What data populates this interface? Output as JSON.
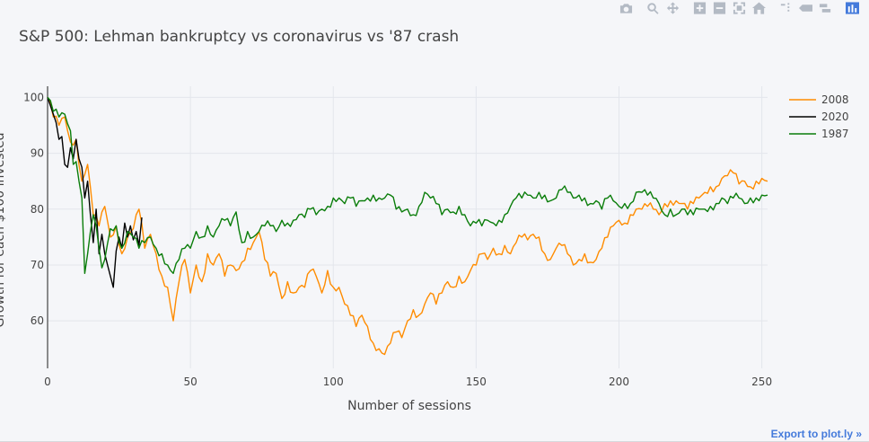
{
  "modebar": {
    "buttons": [
      {
        "name": "camera-icon"
      },
      {
        "name": "zoom-icon"
      },
      {
        "name": "pan-icon"
      },
      {
        "name": "zoom-in-icon"
      },
      {
        "name": "zoom-out-icon"
      },
      {
        "name": "autoscale-icon"
      },
      {
        "name": "home-icon"
      },
      {
        "name": "spike-lines-icon"
      },
      {
        "name": "hover-closest-icon"
      },
      {
        "name": "hover-compare-icon"
      },
      {
        "name": "plotly-logo-icon"
      }
    ]
  },
  "export_label": "Export to plot.ly »",
  "colors": {
    "s2008": "#ff8c00",
    "s2020": "#000000",
    "s1987": "#0a7d0a",
    "grid": "#e3e6ec",
    "axis": "#444444"
  },
  "chart_data": {
    "type": "line",
    "title": "S&P 500: Lehman bankruptcy vs coronavirus vs '87 crash",
    "xlabel": "Number of sessions",
    "ylabel": "Growth for each $100 invested",
    "xlim": [
      0,
      252
    ],
    "ylim": [
      51.5,
      102
    ],
    "x_ticks": [
      0,
      50,
      100,
      150,
      200,
      250
    ],
    "y_ticks": [
      60,
      70,
      80,
      90,
      100
    ],
    "legend_position": "top-right",
    "series": [
      {
        "name": "2008",
        "color": "#ff8c00",
        "keypoints": [
          [
            0,
            100
          ],
          [
            2,
            96.5
          ],
          [
            4,
            95
          ],
          [
            6,
            96.5
          ],
          [
            8,
            92
          ],
          [
            10,
            92.5
          ],
          [
            12,
            85
          ],
          [
            14,
            88
          ],
          [
            16,
            79
          ],
          [
            18,
            77
          ],
          [
            20,
            80.5
          ],
          [
            22,
            75
          ],
          [
            24,
            77
          ],
          [
            26,
            72
          ],
          [
            28,
            75
          ],
          [
            30,
            76.5
          ],
          [
            32,
            80
          ],
          [
            34,
            73
          ],
          [
            36,
            75.5
          ],
          [
            38,
            72
          ],
          [
            40,
            68
          ],
          [
            42,
            66
          ],
          [
            44,
            60
          ],
          [
            46,
            67
          ],
          [
            48,
            71
          ],
          [
            50,
            65
          ],
          [
            52,
            70
          ],
          [
            54,
            67
          ],
          [
            56,
            72
          ],
          [
            58,
            70
          ],
          [
            60,
            72
          ],
          [
            62,
            68
          ],
          [
            64,
            70
          ],
          [
            66,
            69
          ],
          [
            68,
            70.5
          ],
          [
            70,
            73
          ],
          [
            72,
            74
          ],
          [
            74,
            76
          ],
          [
            76,
            71
          ],
          [
            78,
            68
          ],
          [
            80,
            68.5
          ],
          [
            82,
            64
          ],
          [
            84,
            67
          ],
          [
            86,
            65
          ],
          [
            88,
            66
          ],
          [
            90,
            66
          ],
          [
            92,
            69
          ],
          [
            94,
            68
          ],
          [
            96,
            65
          ],
          [
            98,
            69
          ],
          [
            100,
            66
          ],
          [
            102,
            66
          ],
          [
            104,
            63
          ],
          [
            106,
            61
          ],
          [
            108,
            59
          ],
          [
            110,
            61
          ],
          [
            112,
            59
          ],
          [
            114,
            56
          ],
          [
            116,
            55
          ],
          [
            118,
            54
          ],
          [
            120,
            56
          ],
          [
            122,
            58
          ],
          [
            124,
            57
          ],
          [
            126,
            60
          ],
          [
            128,
            62
          ],
          [
            130,
            61
          ],
          [
            132,
            63
          ],
          [
            134,
            65
          ],
          [
            136,
            63
          ],
          [
            138,
            65
          ],
          [
            140,
            67
          ],
          [
            142,
            66
          ],
          [
            144,
            68
          ],
          [
            146,
            67
          ],
          [
            148,
            69
          ],
          [
            150,
            70
          ],
          [
            152,
            72
          ],
          [
            154,
            71
          ],
          [
            156,
            73
          ],
          [
            158,
            72
          ],
          [
            160,
            73.5
          ],
          [
            162,
            72
          ],
          [
            164,
            74
          ],
          [
            166,
            75
          ],
          [
            168,
            74.5
          ],
          [
            170,
            75.5
          ],
          [
            172,
            75
          ],
          [
            174,
            72
          ],
          [
            176,
            71
          ],
          [
            178,
            73
          ],
          [
            180,
            73.5
          ],
          [
            182,
            72
          ],
          [
            184,
            70
          ],
          [
            186,
            71
          ],
          [
            188,
            72
          ],
          [
            190,
            70.5
          ],
          [
            192,
            71
          ],
          [
            194,
            73
          ],
          [
            196,
            75
          ],
          [
            198,
            77
          ],
          [
            200,
            78
          ],
          [
            202,
            77.5
          ],
          [
            204,
            79
          ],
          [
            206,
            80
          ],
          [
            208,
            80
          ],
          [
            210,
            80.5
          ],
          [
            212,
            80
          ],
          [
            214,
            79
          ],
          [
            216,
            81
          ],
          [
            218,
            81.5
          ],
          [
            220,
            81.5
          ],
          [
            222,
            81
          ],
          [
            224,
            80
          ],
          [
            226,
            81
          ],
          [
            228,
            82
          ],
          [
            230,
            83
          ],
          [
            232,
            84
          ],
          [
            234,
            84
          ],
          [
            236,
            85.5
          ],
          [
            238,
            86
          ],
          [
            240,
            86.5
          ],
          [
            242,
            84.5
          ],
          [
            244,
            85
          ],
          [
            246,
            84
          ],
          [
            248,
            85
          ],
          [
            250,
            85.5
          ],
          [
            252,
            85
          ]
        ]
      },
      {
        "name": "2020",
        "color": "#000000",
        "keypoints": [
          [
            0,
            100
          ],
          [
            1,
            98.5
          ],
          [
            2,
            97
          ],
          [
            3,
            95.5
          ],
          [
            4,
            92.5
          ],
          [
            5,
            93
          ],
          [
            6,
            88
          ],
          [
            7,
            87.5
          ],
          [
            8,
            91
          ],
          [
            9,
            89
          ],
          [
            10,
            92.5
          ],
          [
            11,
            89
          ],
          [
            12,
            87.5
          ],
          [
            13,
            82
          ],
          [
            14,
            85
          ],
          [
            15,
            79
          ],
          [
            16,
            74
          ],
          [
            17,
            80
          ],
          [
            18,
            72
          ],
          [
            19,
            75.5
          ],
          [
            20,
            72
          ],
          [
            21,
            70
          ],
          [
            22,
            68
          ],
          [
            23,
            66
          ],
          [
            24,
            72.5
          ],
          [
            25,
            75
          ],
          [
            26,
            73
          ],
          [
            27,
            77.5
          ],
          [
            28,
            75
          ],
          [
            29,
            77
          ],
          [
            30,
            74.5
          ],
          [
            31,
            76
          ],
          [
            32,
            73.5
          ],
          [
            33,
            78.5
          ]
        ]
      },
      {
        "name": "1987",
        "color": "#0a7d0a",
        "keypoints": [
          [
            0,
            100
          ],
          [
            2,
            97.5
          ],
          [
            4,
            96.5
          ],
          [
            6,
            97
          ],
          [
            8,
            94
          ],
          [
            9,
            88
          ],
          [
            10,
            88.5
          ],
          [
            11,
            85
          ],
          [
            12,
            82
          ],
          [
            13,
            68.5
          ],
          [
            14,
            72
          ],
          [
            15,
            76
          ],
          [
            16,
            79
          ],
          [
            17,
            77
          ],
          [
            18,
            73
          ],
          [
            19,
            69.5
          ],
          [
            20,
            71
          ],
          [
            22,
            76.5
          ],
          [
            24,
            77
          ],
          [
            26,
            73
          ],
          [
            28,
            76
          ],
          [
            30,
            75
          ],
          [
            32,
            73
          ],
          [
            34,
            74
          ],
          [
            36,
            75
          ],
          [
            38,
            73
          ],
          [
            40,
            72
          ],
          [
            42,
            70
          ],
          [
            44,
            68.5
          ],
          [
            46,
            71
          ],
          [
            48,
            73
          ],
          [
            50,
            73
          ],
          [
            52,
            76
          ],
          [
            54,
            75
          ],
          [
            56,
            77
          ],
          [
            58,
            75
          ],
          [
            60,
            77
          ],
          [
            62,
            78
          ],
          [
            64,
            77
          ],
          [
            66,
            79.5
          ],
          [
            68,
            74
          ],
          [
            70,
            76
          ],
          [
            72,
            75
          ],
          [
            74,
            76
          ],
          [
            76,
            77
          ],
          [
            78,
            77
          ],
          [
            80,
            76
          ],
          [
            82,
            78
          ],
          [
            84,
            77.5
          ],
          [
            86,
            78
          ],
          [
            88,
            79
          ],
          [
            90,
            78.5
          ],
          [
            92,
            80
          ],
          [
            94,
            79
          ],
          [
            96,
            80
          ],
          [
            98,
            80.5
          ],
          [
            100,
            82
          ],
          [
            102,
            82
          ],
          [
            104,
            81
          ],
          [
            106,
            82
          ],
          [
            108,
            80.5
          ],
          [
            110,
            81.5
          ],
          [
            112,
            82
          ],
          [
            114,
            82.5
          ],
          [
            116,
            82
          ],
          [
            118,
            82
          ],
          [
            120,
            82.5
          ],
          [
            122,
            80
          ],
          [
            124,
            79.5
          ],
          [
            126,
            80
          ],
          [
            128,
            79
          ],
          [
            130,
            80.5
          ],
          [
            132,
            83
          ],
          [
            134,
            82
          ],
          [
            136,
            81
          ],
          [
            138,
            79
          ],
          [
            140,
            80
          ],
          [
            142,
            79.5
          ],
          [
            144,
            80.5
          ],
          [
            146,
            79
          ],
          [
            148,
            77
          ],
          [
            150,
            77.5
          ],
          [
            152,
            77
          ],
          [
            154,
            78
          ],
          [
            156,
            77.5
          ],
          [
            158,
            78
          ],
          [
            160,
            79
          ],
          [
            162,
            80.5
          ],
          [
            164,
            82
          ],
          [
            166,
            82
          ],
          [
            168,
            82.5
          ],
          [
            170,
            82
          ],
          [
            172,
            83
          ],
          [
            174,
            82.5
          ],
          [
            176,
            81.5
          ],
          [
            178,
            82
          ],
          [
            180,
            83.5
          ],
          [
            182,
            83
          ],
          [
            184,
            82
          ],
          [
            186,
            82.5
          ],
          [
            188,
            82
          ],
          [
            190,
            81
          ],
          [
            192,
            81.5
          ],
          [
            194,
            80
          ],
          [
            196,
            82
          ],
          [
            198,
            81.5
          ],
          [
            200,
            80.5
          ],
          [
            202,
            81
          ],
          [
            204,
            81
          ],
          [
            206,
            83
          ],
          [
            208,
            83
          ],
          [
            210,
            82.5
          ],
          [
            212,
            82
          ],
          [
            214,
            81
          ],
          [
            216,
            79
          ],
          [
            218,
            80
          ],
          [
            220,
            79
          ],
          [
            222,
            80
          ],
          [
            224,
            79
          ],
          [
            226,
            79
          ],
          [
            228,
            80
          ],
          [
            230,
            80
          ],
          [
            232,
            80.5
          ],
          [
            234,
            81
          ],
          [
            236,
            82
          ],
          [
            238,
            81
          ],
          [
            240,
            82
          ],
          [
            242,
            82
          ],
          [
            244,
            81
          ],
          [
            246,
            82
          ],
          [
            248,
            82
          ],
          [
            250,
            82.5
          ],
          [
            252,
            82.5
          ]
        ]
      }
    ]
  }
}
